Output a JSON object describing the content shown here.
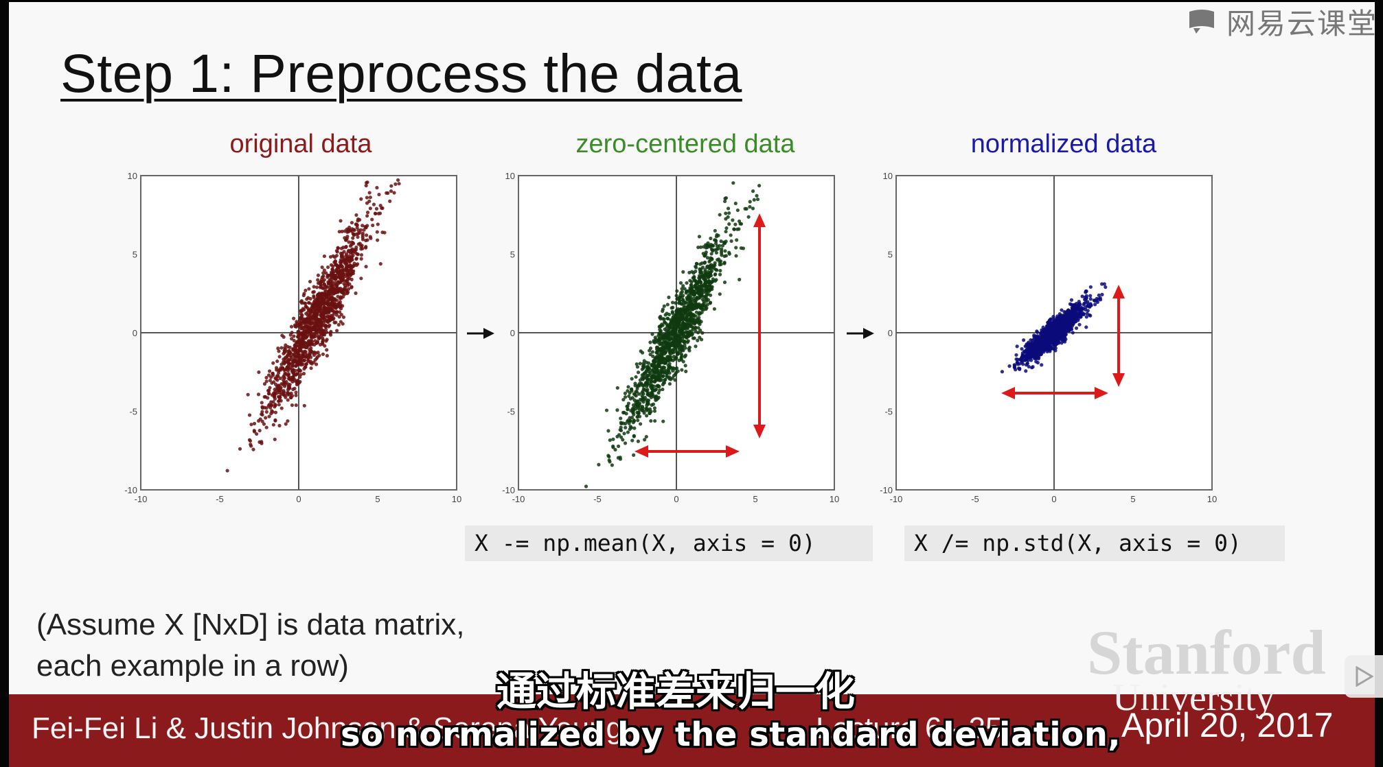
{
  "slide": {
    "title": "Step 1: Preprocess the data",
    "watermark_text": "网易云课堂",
    "watermark_icon": "netease-classroom-icon",
    "colors": {
      "original": "#8b1a1a",
      "zero_centered": "#2e7d1e",
      "normalized": "#1a1a8c",
      "arrows": "#dd1a1a",
      "footer": "#8b1a1c"
    }
  },
  "panels": [
    {
      "title": "original data",
      "title_color": "#8b1a1a"
    },
    {
      "title": "zero-centered data",
      "title_color": "#3b8c28"
    },
    {
      "title": "normalized data",
      "title_color": "#1a1aa8"
    }
  ],
  "chart_data": [
    {
      "type": "scatter",
      "title": "original data",
      "xlim": [
        -10,
        10
      ],
      "ylim": [
        -10,
        10
      ],
      "xticks": [
        "-10",
        "-5",
        "0",
        "5",
        "10"
      ],
      "yticks": [
        "10",
        "5",
        "0",
        "-5",
        "-10"
      ],
      "center": [
        1.2,
        1.0
      ],
      "spread_major": 4.0,
      "spread_minor": 0.55,
      "angle_deg": 63,
      "color": "#6a1010"
    },
    {
      "type": "scatter",
      "title": "zero-centered data",
      "xlim": [
        -10,
        10
      ],
      "ylim": [
        -10,
        10
      ],
      "xticks": [
        "-10",
        "-5",
        "0",
        "5",
        "10"
      ],
      "yticks": [
        "10",
        "5",
        "0",
        "-5",
        "-10"
      ],
      "center": [
        0,
        0
      ],
      "spread_major": 4.0,
      "spread_minor": 0.55,
      "angle_deg": 63,
      "color": "#0f3a0f"
    },
    {
      "type": "scatter",
      "title": "normalized data",
      "xlim": [
        -10,
        10
      ],
      "ylim": [
        -10,
        10
      ],
      "xticks": [
        "-10",
        "-5",
        "0",
        "5",
        "10"
      ],
      "yticks": [
        "10",
        "5",
        "0",
        "-5",
        "-10"
      ],
      "center": [
        0,
        0
      ],
      "spread_major": 1.45,
      "spread_minor": 0.3,
      "angle_deg": 42,
      "color": "#0a0a7a"
    }
  ],
  "code": {
    "zero_center": "X -= np.mean(X, axis = 0)",
    "normalize": "X /= np.std(X, axis = 0)"
  },
  "note": {
    "line1": "(Assume X [NxD] is data matrix,",
    "line2": "each example in a row)"
  },
  "footer": {
    "authors": "Fei-Fei Li & Justin Johnson & Serena Yeung",
    "lecture": "Lecture 6 - 25",
    "date": "April 20, 2017",
    "university": "University",
    "logo_text": "Stanford"
  },
  "subtitles": {
    "zh": "通过标准差来归一化",
    "en": "so normalized by the standard deviation,"
  }
}
